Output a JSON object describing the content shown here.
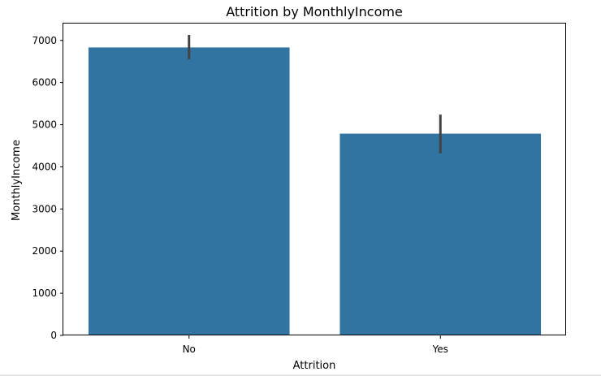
{
  "chart_data": {
    "type": "bar",
    "title": "Attrition by MonthlyIncome",
    "xlabel": "Attrition",
    "ylabel": "MonthlyIncome",
    "categories": [
      "No",
      "Yes"
    ],
    "values": [
      6833,
      4787
    ],
    "error_bars": [
      {
        "low": 6550,
        "high": 7130
      },
      {
        "low": 4320,
        "high": 5240
      }
    ],
    "ylim": [
      0,
      7400
    ],
    "yticks": [
      0,
      1000,
      2000,
      3000,
      4000,
      5000,
      6000,
      7000
    ],
    "ytick_labels": [
      "0",
      "1000",
      "2000",
      "3000",
      "4000",
      "5000",
      "6000",
      "7000"
    ],
    "bar_color": "#3274a1",
    "errorbar_color": "#424242",
    "grid": false,
    "legend": "none"
  }
}
